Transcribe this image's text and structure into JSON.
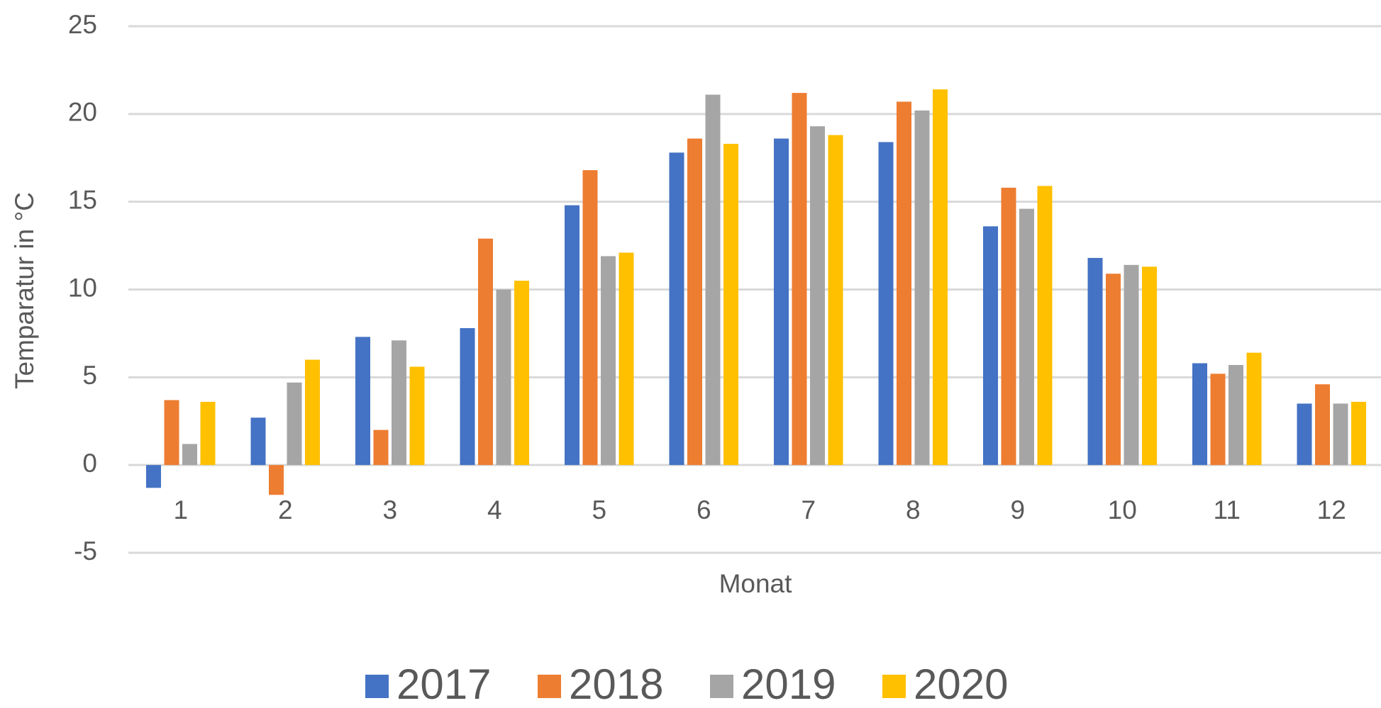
{
  "chart_data": {
    "type": "bar",
    "y_label": "Temparatur in °C",
    "x_label": "Monat",
    "categories": [
      "1",
      "2",
      "3",
      "4",
      "5",
      "6",
      "7",
      "8",
      "9",
      "10",
      "11",
      "12"
    ],
    "series": [
      {
        "name": "2017",
        "color": "#4472c4",
        "values": [
          -1.3,
          2.7,
          7.3,
          7.8,
          14.8,
          17.8,
          18.6,
          18.4,
          13.6,
          11.8,
          5.8,
          3.5
        ]
      },
      {
        "name": "2018",
        "color": "#ed7d31",
        "values": [
          3.7,
          -1.7,
          2.0,
          12.9,
          16.8,
          18.6,
          21.2,
          20.7,
          15.8,
          10.9,
          5.2,
          4.6
        ]
      },
      {
        "name": "2019",
        "color": "#a5a5a5",
        "values": [
          1.2,
          4.7,
          7.1,
          10.0,
          11.9,
          21.1,
          19.3,
          20.2,
          14.6,
          11.4,
          5.7,
          3.5
        ]
      },
      {
        "name": "2020",
        "color": "#ffc000",
        "values": [
          3.6,
          6.0,
          5.6,
          10.5,
          12.1,
          18.3,
          18.8,
          21.4,
          15.9,
          11.3,
          6.4,
          3.6
        ]
      }
    ],
    "ylim": [
      -5,
      25
    ],
    "yticks": [
      -5,
      0,
      5,
      10,
      15,
      20,
      25
    ],
    "grid": true,
    "legend": "bottom"
  }
}
